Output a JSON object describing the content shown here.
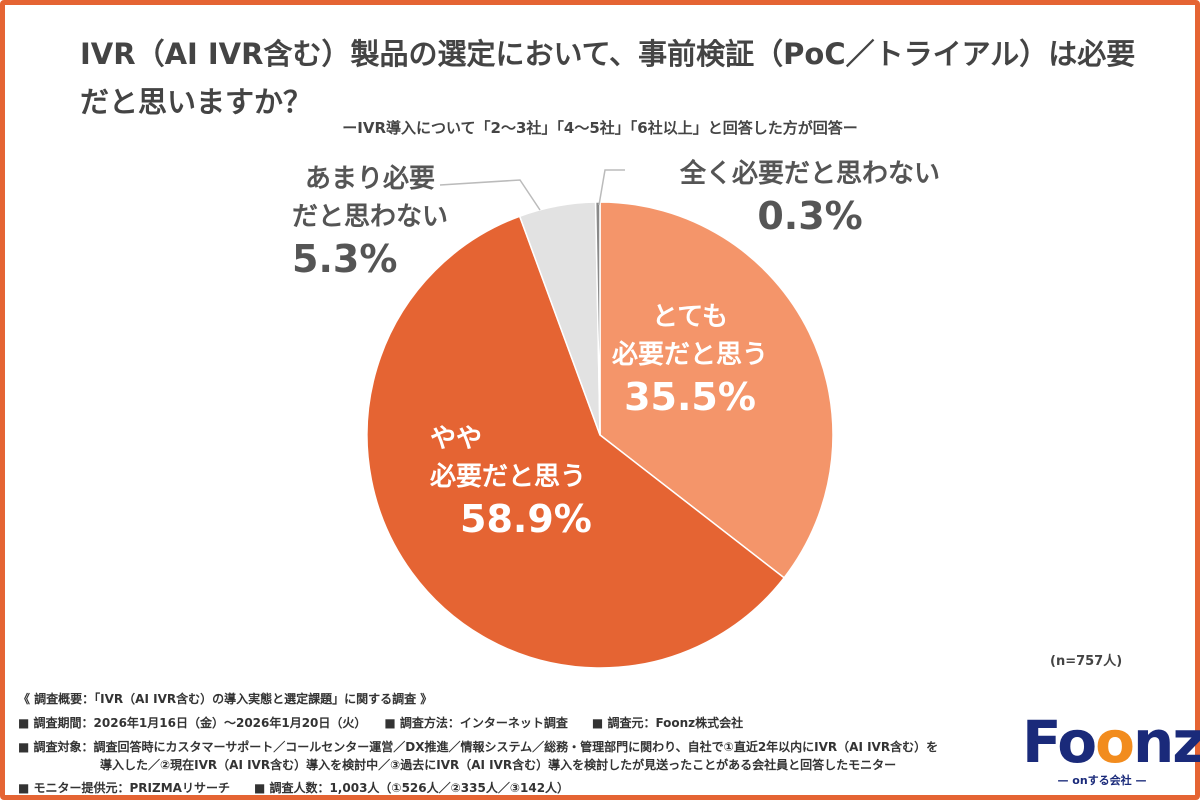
{
  "title": "IVR（AI IVR含む）製品の選定において、事前検証（PoC／トライアル）は必要だと思いますか？",
  "subtitle": "ーIVR導入について「2〜3社」「4〜5社」「6社以上」と回答した方が回答ー",
  "sample": "(n=757人)",
  "chart_data": {
    "type": "pie",
    "start": "top",
    "direction": "clockwise",
    "slices": [
      {
        "label_lines": [
          "とても",
          "必要だと思う"
        ],
        "value": 35.5,
        "display": "35.5%",
        "color": "#F4956A"
      },
      {
        "label_lines": [
          "やや",
          "必要だと思う"
        ],
        "value": 58.9,
        "display": "58.9%",
        "color": "#E56433"
      },
      {
        "label_lines": [
          "あまり必要",
          "だと思わない"
        ],
        "value": 5.3,
        "display": "5.3%",
        "color": "#E2E2E2"
      },
      {
        "label_lines": [
          "全く必要だと思わない"
        ],
        "value": 0.3,
        "display": "0.3%",
        "color": "#8A8A8A"
      }
    ]
  },
  "footer": {
    "line1": "《 調査概要：「IVR（AI IVR含む）の導入実態と選定課題」に関する調査 》",
    "line2": "■ 調査期間：2026年1月16日（金）〜2026年1月20日（火）　　■ 調査方法：インターネット調査　　■ 調査元：Foonz株式会社",
    "line3": "■ 調査対象：調査回答時にカスタマーサポート／コールセンター運営／DX推進／情報システム／総務・管理部門に関わり、自社で①直近2年以内にIVR（AI IVR含む）を",
    "line4": "導入した／②現在IVR（AI IVR含む）導入を検討中／③過去にIVR（AI IVR含む）導入を検討したが見送ったことがある会社員と回答したモニター",
    "line5": "■ モニター提供元：PRIZMAリサーチ　　■ 調査人数：1,003人（①526人／②335人／③142人）"
  },
  "logo": {
    "word": "Foonz",
    "tagline": "— onする会社 —"
  }
}
